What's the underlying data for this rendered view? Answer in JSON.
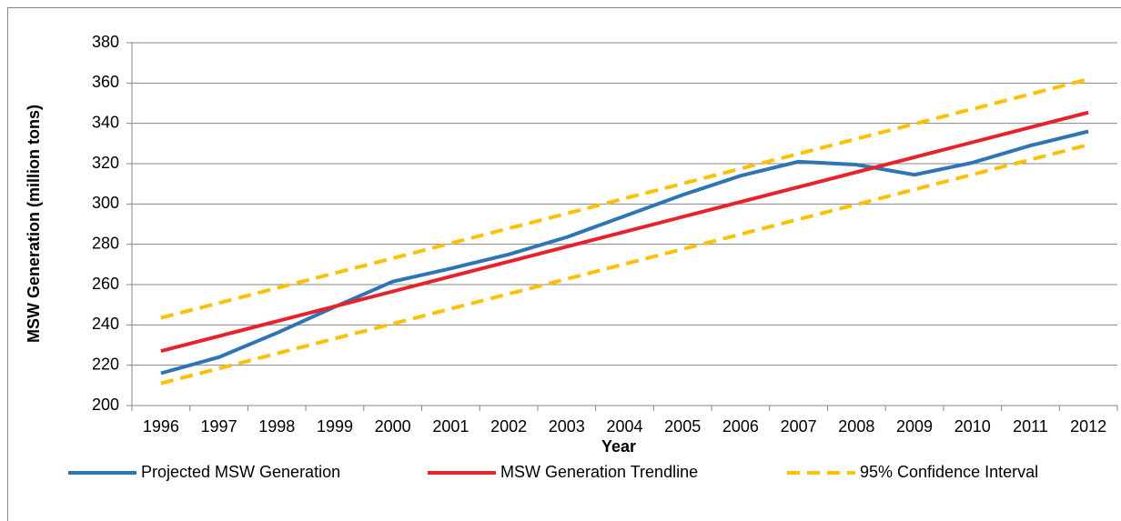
{
  "chart_data": {
    "type": "line",
    "x_label": "Year",
    "y_label": "MSW Generation (million tons)",
    "categories": [
      "1996",
      "1997",
      "1998",
      "1999",
      "2000",
      "2001",
      "2002",
      "2003",
      "2004",
      "2005",
      "2006",
      "2007",
      "2008",
      "2009",
      "2010",
      "2011",
      "2012"
    ],
    "series": [
      {
        "name": "Projected MSW Generation",
        "color": "#2e75b6",
        "dash": false,
        "values": [
          216,
          224,
          236,
          249,
          261.5,
          268,
          275,
          283.5,
          294,
          304.5,
          314,
          321,
          319.5,
          314.5,
          320.5,
          329,
          336
        ]
      },
      {
        "name": "MSW Generation Trendline",
        "color": "#e8212b",
        "dash": false,
        "values": [
          227,
          234.4,
          241.8,
          249.2,
          256.6,
          264,
          271.4,
          278.8,
          286.2,
          293.6,
          301,
          308.4,
          315.8,
          323.2,
          330.6,
          338,
          345.4
        ]
      },
      {
        "name": "95% Confidence Interval",
        "color": "#ffc000",
        "dash": true,
        "values": [
          243.5,
          250.9,
          258.3,
          265.7,
          273.1,
          280.5,
          287.9,
          295.3,
          302.7,
          310.1,
          317.5,
          324.9,
          332.3,
          339.7,
          347.1,
          354.5,
          361.9
        ],
        "lower": [
          211,
          218.4,
          225.8,
          233.2,
          240.6,
          248,
          255.4,
          262.8,
          270.2,
          277.6,
          285,
          292.4,
          299.8,
          307.2,
          314.6,
          322,
          329.4
        ]
      }
    ],
    "ylim": [
      200,
      380
    ],
    "yticks": [
      200,
      220,
      240,
      260,
      280,
      300,
      320,
      340,
      360,
      380
    ],
    "grid": true,
    "legend": "bottom"
  }
}
